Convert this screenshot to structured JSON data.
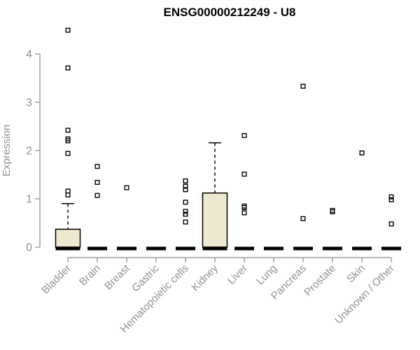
{
  "chart_data": {
    "type": "boxplot",
    "title": "ENSG00000212249 - U8",
    "ylabel": "Expression",
    "xlabel": "",
    "ylim": [
      0,
      4.6
    ],
    "yticks": [
      0,
      1,
      2,
      3,
      4
    ],
    "grid": false,
    "legend": false,
    "categories": [
      "Bladder",
      "Brain",
      "Breast",
      "Gastric",
      "Hematopoietic cells",
      "Kidney",
      "Liver",
      "Lung",
      "Pancreas",
      "Prostate",
      "Skin",
      "Unknown / Other"
    ],
    "series": [
      {
        "name": "Bladder",
        "q1": 0,
        "median": 0,
        "q3": 0.37,
        "whisker_low": 0,
        "whisker_high": 0.9,
        "outliers": [
          4.49,
          3.71,
          2.42,
          2.24,
          2.2,
          1.94,
          1.16,
          1.08
        ]
      },
      {
        "name": "Brain",
        "q1": 0,
        "median": 0,
        "q3": 0,
        "whisker_low": 0,
        "whisker_high": 0,
        "outliers": [
          1.67,
          1.34,
          1.07
        ]
      },
      {
        "name": "Breast",
        "q1": 0,
        "median": 0,
        "q3": 0,
        "whisker_low": 0,
        "whisker_high": 0,
        "outliers": [
          1.23
        ]
      },
      {
        "name": "Gastric",
        "q1": 0,
        "median": 0,
        "q3": 0,
        "whisker_low": 0,
        "whisker_high": 0,
        "outliers": []
      },
      {
        "name": "Hematopoietic cells",
        "q1": 0,
        "median": 0,
        "q3": 0,
        "whisker_low": 0,
        "whisker_high": 0,
        "outliers": [
          1.37,
          1.26,
          1.19,
          0.93,
          0.74,
          0.68,
          0.52
        ]
      },
      {
        "name": "Kidney",
        "q1": 0,
        "median": 0,
        "q3": 1.12,
        "whisker_low": 0,
        "whisker_high": 2.16,
        "outliers": []
      },
      {
        "name": "Liver",
        "q1": 0,
        "median": 0,
        "q3": 0,
        "whisker_low": 0,
        "whisker_high": 0,
        "outliers": [
          2.31,
          1.51,
          0.85,
          0.82,
          0.71
        ]
      },
      {
        "name": "Lung",
        "q1": 0,
        "median": 0,
        "q3": 0,
        "whisker_low": 0,
        "whisker_high": 0,
        "outliers": []
      },
      {
        "name": "Pancreas",
        "q1": 0,
        "median": 0,
        "q3": 0,
        "whisker_low": 0,
        "whisker_high": 0,
        "outliers": [
          3.33,
          0.59
        ]
      },
      {
        "name": "Prostate",
        "q1": 0,
        "median": 0,
        "q3": 0,
        "whisker_low": 0,
        "whisker_high": 0,
        "outliers": [
          0.76,
          0.73
        ]
      },
      {
        "name": "Skin",
        "q1": 0,
        "median": 0,
        "q3": 0,
        "whisker_low": 0,
        "whisker_high": 0,
        "outliers": [
          1.95
        ]
      },
      {
        "name": "Unknown / Other",
        "q1": 0,
        "median": 0,
        "q3": 0,
        "whisker_low": 0,
        "whisker_high": 0,
        "outliers": [
          1.04,
          0.98,
          0.48
        ]
      }
    ],
    "colors": {
      "box_fill": "#EDE8D0",
      "box_border": "#000000",
      "median": "#000000",
      "whisker": "#000000",
      "outlier": "#000000",
      "axis": "#8C8C8C",
      "label": "#919191",
      "title": "#000000",
      "background": "#FFFFFF"
    }
  }
}
